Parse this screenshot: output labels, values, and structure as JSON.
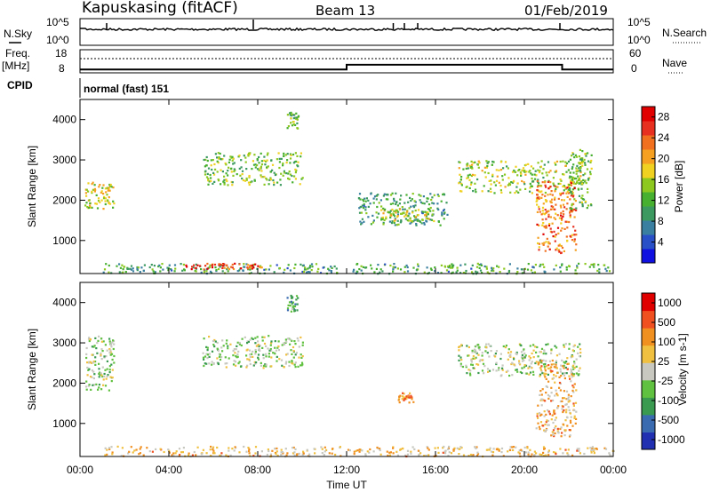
{
  "header": {
    "station": "Kapuskasing (fitACF)",
    "beam": "Beam 13",
    "date": "01/Feb/2019"
  },
  "noise_panel": {
    "left_label": "N.Sky",
    "right_label": "N.Search",
    "left_ticks": [
      "10^5",
      "10^0"
    ],
    "right_ticks": [
      "10^5",
      "10^0"
    ]
  },
  "freq_panel": {
    "left_label_line1": "Freq.",
    "left_label_line2": "[MHz]",
    "right_label": "Nave",
    "left_ticks": [
      "18",
      "8"
    ],
    "right_ticks": [
      "60",
      "0"
    ]
  },
  "cpid": {
    "label": "CPID",
    "value": "normal (fast) 151"
  },
  "x_axis": {
    "label": "Time UT",
    "ticks": [
      "00:00",
      "04:00",
      "08:00",
      "12:00",
      "16:00",
      "20:00",
      "00:00"
    ]
  },
  "chart_data": [
    {
      "type": "heatmap",
      "title": "",
      "ylabel": "Slant Range [km]",
      "xlabel": "Time UT",
      "ylim": [
        180,
        4500
      ],
      "yticks": [
        "1000",
        "2000",
        "3000",
        "4000"
      ],
      "colorbar": {
        "label": "Power [dB]",
        "range": [
          0,
          30
        ],
        "ticks": [
          "4",
          "8",
          "12",
          "16",
          "20",
          "24",
          "28"
        ],
        "colors": [
          "#1010e0",
          "#2a50c8",
          "#3a7fa0",
          "#3c9a60",
          "#48b030",
          "#8cc820",
          "#f0d020",
          "#f5a020",
          "#f07020",
          "#e83020",
          "#e00000"
        ]
      },
      "echo_regions": [
        {
          "x": [
            0.2,
            1.5
          ],
          "y": [
            1800,
            2500
          ],
          "level": 0.55
        },
        {
          "x": [
            1.0,
            24.0
          ],
          "y": [
            200,
            450
          ],
          "level": 0.35
        },
        {
          "x": [
            4.5,
            8.3
          ],
          "y": [
            300,
            450
          ],
          "level": 0.8
        },
        {
          "x": [
            5.5,
            10.0
          ],
          "y": [
            2400,
            3200
          ],
          "level": 0.45
        },
        {
          "x": [
            9.3,
            9.8
          ],
          "y": [
            3800,
            4200
          ],
          "level": 0.4
        },
        {
          "x": [
            12.5,
            16.5
          ],
          "y": [
            1400,
            2200
          ],
          "level": 0.35
        },
        {
          "x": [
            13.5,
            16.0
          ],
          "y": [
            1500,
            1800
          ],
          "level": 0.55
        },
        {
          "x": [
            17.0,
            22.5
          ],
          "y": [
            2200,
            3000
          ],
          "level": 0.5
        },
        {
          "x": [
            20.5,
            22.3
          ],
          "y": [
            700,
            2500
          ],
          "level": 0.75
        },
        {
          "x": [
            22.0,
            23.0
          ],
          "y": [
            1800,
            3300
          ],
          "level": 0.45
        }
      ]
    },
    {
      "type": "heatmap",
      "title": "",
      "ylabel": "Slant Range [km]",
      "xlabel": "Time UT",
      "ylim": [
        180,
        4500
      ],
      "yticks": [
        "1000",
        "2000",
        "3000",
        "4000"
      ],
      "colorbar": {
        "label": "Velocity [m s-1]",
        "ticks": [
          "1000",
          "500",
          "100",
          "25",
          "-25",
          "-100",
          "-500",
          "-1000"
        ],
        "colors": [
          "#2030b0",
          "#3a6ab0",
          "#3a9a50",
          "#60c040",
          "#c8c8c0",
          "#f0c040",
          "#f09020",
          "#f05020",
          "#e00000"
        ]
      },
      "echo_regions": [
        {
          "x": [
            0.2,
            1.5
          ],
          "y": [
            1800,
            3200
          ],
          "level": 0.45
        },
        {
          "x": [
            1.0,
            24.0
          ],
          "y": [
            200,
            450
          ],
          "level": 0.62
        },
        {
          "x": [
            5.5,
            10.0
          ],
          "y": [
            2400,
            3200
          ],
          "level": 0.45
        },
        {
          "x": [
            9.3,
            9.8
          ],
          "y": [
            3800,
            4200
          ],
          "level": 0.3
        },
        {
          "x": [
            14.3,
            15.0
          ],
          "y": [
            1500,
            1800
          ],
          "level": 0.75
        },
        {
          "x": [
            17.0,
            22.5
          ],
          "y": [
            2200,
            3000
          ],
          "level": 0.45
        },
        {
          "x": [
            20.5,
            22.3
          ],
          "y": [
            700,
            2600
          ],
          "level": 0.65
        }
      ]
    }
  ],
  "noise_series": {
    "sky_base": 0.6,
    "spikes_hours": [
      1.2,
      7.8,
      14.1,
      14.6,
      15.2,
      21.6
    ]
  },
  "freq_series": {
    "steps": [
      [
        0,
        10.2
      ],
      [
        12,
        12.3
      ],
      [
        21.7,
        10.2
      ],
      [
        24,
        10.2
      ]
    ]
  },
  "nave_series": {
    "level": 40
  }
}
